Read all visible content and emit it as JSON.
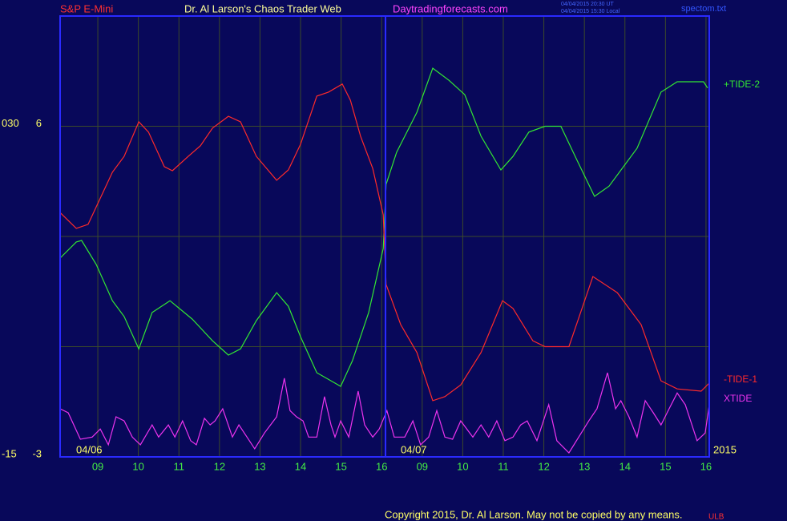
{
  "header": {
    "instrument": "S&P E-Mini",
    "site_title": "Dr. Al Larson's Chaos Trader Web",
    "site_url": "Daytradingforecasts.com",
    "stamp_ut": "04/04/2015 20:30 UT",
    "stamp_local": "04/04/2015 15:30 Local",
    "file": "spectom.txt"
  },
  "footer": {
    "copyright": "Copyright 2015, Dr. Al Larson. May not be copied by any means.",
    "mark": "ULB"
  },
  "chart_data": {
    "type": "line",
    "date_labels": [
      "04/06",
      "04/07"
    ],
    "year_label": "2015",
    "xlim": [
      0.07,
      16.08
    ],
    "xticks": [
      {
        "value": 1,
        "label": "09"
      },
      {
        "value": 2,
        "label": "10"
      },
      {
        "value": 3,
        "label": "11"
      },
      {
        "value": 4,
        "label": "12"
      },
      {
        "value": 5,
        "label": "13"
      },
      {
        "value": 6,
        "label": "14"
      },
      {
        "value": 7,
        "label": "15"
      },
      {
        "value": 8,
        "label": "16"
      },
      {
        "value": 9,
        "label": "09"
      },
      {
        "value": 10,
        "label": "10"
      },
      {
        "value": 11,
        "label": "11"
      },
      {
        "value": 12,
        "label": "12"
      },
      {
        "value": 13,
        "label": "13"
      },
      {
        "value": 14,
        "label": "14"
      },
      {
        "value": 15,
        "label": "15"
      },
      {
        "value": 16,
        "label": "16"
      }
    ],
    "ylim": [
      -3,
      9
    ],
    "yticks": [
      -3,
      6
    ],
    "ygrid": [
      0,
      3,
      6
    ],
    "y2lim": [
      -15,
      45
    ],
    "y2ticks": [
      -15,
      {
        "value": 30,
        "label": "030"
      }
    ],
    "grid": true,
    "series": [
      {
        "name": "+TIDE-2",
        "color": "#33e833",
        "x": [
          0.07,
          0.47,
          0.6,
          0.96,
          1.36,
          1.65,
          2.01,
          2.34,
          2.78,
          3.33,
          3.83,
          4.22,
          4.52,
          4.91,
          5.41,
          5.7,
          6.0,
          6.4,
          6.99,
          7.28,
          7.68,
          8.04,
          8.11,
          8.37,
          8.87,
          9.26,
          9.66,
          10.05,
          10.45,
          10.94,
          11.24,
          11.63,
          12.03,
          12.42,
          12.82,
          13.25,
          13.61,
          14.3,
          14.89,
          15.29,
          15.94,
          16.04
        ],
        "values": [
          2.41,
          2.85,
          2.89,
          2.24,
          1.25,
          0.82,
          -0.06,
          0.93,
          1.25,
          0.75,
          0.16,
          -0.23,
          -0.06,
          0.71,
          1.47,
          1.1,
          0.27,
          -0.71,
          -1.08,
          -0.38,
          0.93,
          2.67,
          4.42,
          5.29,
          6.38,
          7.58,
          7.25,
          6.86,
          5.73,
          4.81,
          5.18,
          5.84,
          6.0,
          6.0,
          5.07,
          4.09,
          4.37,
          5.4,
          6.93,
          7.21,
          7.21,
          7.04
        ]
      },
      {
        "name": "-TIDE-1",
        "color": "#ff2a2a",
        "x": [
          0.07,
          0.47,
          0.76,
          1.36,
          1.65,
          2.01,
          2.25,
          2.64,
          2.84,
          3.23,
          3.53,
          3.83,
          4.22,
          4.52,
          4.91,
          5.41,
          5.7,
          6.0,
          6.4,
          6.69,
          7.03,
          7.23,
          7.48,
          7.78,
          8.04,
          8.11,
          8.47,
          8.87,
          9.26,
          9.56,
          9.95,
          10.45,
          10.98,
          11.24,
          11.73,
          12.03,
          12.62,
          13.21,
          13.81,
          14.4,
          14.89,
          15.29,
          15.88,
          16.08
        ],
        "values": [
          3.65,
          3.22,
          3.33,
          4.75,
          5.18,
          6.12,
          5.84,
          4.9,
          4.79,
          5.18,
          5.47,
          5.95,
          6.27,
          6.12,
          5.18,
          4.53,
          4.81,
          5.51,
          6.82,
          6.93,
          7.15,
          6.71,
          5.73,
          4.85,
          3.59,
          1.69,
          0.6,
          -0.16,
          -1.47,
          -1.36,
          -1.04,
          -0.16,
          1.25,
          1.04,
          0.16,
          0,
          0,
          1.91,
          1.47,
          0.6,
          -0.93,
          -1.15,
          -1.21,
          -0.99
        ]
      },
      {
        "name": "XTIDE",
        "color": "#ee33ee",
        "x": [
          0.07,
          0.27,
          0.57,
          0.86,
          1.06,
          1.26,
          1.45,
          1.65,
          1.85,
          2.05,
          2.34,
          2.5,
          2.74,
          2.9,
          3.09,
          3.29,
          3.43,
          3.63,
          3.77,
          3.89,
          4.08,
          4.32,
          4.48,
          4.68,
          4.87,
          5.11,
          5.41,
          5.6,
          5.74,
          5.9,
          6.06,
          6.2,
          6.4,
          6.59,
          6.75,
          6.85,
          6.99,
          7.19,
          7.42,
          7.58,
          7.78,
          7.94,
          8.13,
          8.31,
          8.57,
          8.77,
          8.96,
          9.16,
          9.36,
          9.56,
          9.75,
          9.95,
          10.25,
          10.45,
          10.64,
          10.84,
          11.04,
          11.24,
          11.43,
          11.59,
          11.83,
          12.12,
          12.32,
          12.62,
          12.86,
          13.11,
          13.31,
          13.57,
          13.77,
          13.9,
          14.1,
          14.3,
          14.5,
          14.7,
          14.89,
          15.09,
          15.29,
          15.49,
          15.78,
          15.98,
          16.08
        ],
        "values": [
          -1.69,
          -1.8,
          -2.52,
          -2.46,
          -2.24,
          -2.67,
          -1.91,
          -2.02,
          -2.46,
          -2.67,
          -2.13,
          -2.46,
          -2.13,
          -2.46,
          -2.02,
          -2.56,
          -2.67,
          -1.95,
          -2.13,
          -2.02,
          -1.69,
          -2.46,
          -2.13,
          -2.46,
          -2.78,
          -2.35,
          -1.91,
          -0.86,
          -1.74,
          -1.91,
          -2.02,
          -2.46,
          -2.46,
          -1.36,
          -2.13,
          -2.46,
          -2.02,
          -2.46,
          -1.21,
          -2.13,
          -2.46,
          -2.24,
          -1.74,
          -2.46,
          -2.46,
          -2.02,
          -2.67,
          -2.46,
          -1.74,
          -2.46,
          -2.52,
          -2.02,
          -2.46,
          -2.13,
          -2.46,
          -2.02,
          -2.56,
          -2.46,
          -2.13,
          -2.02,
          -2.56,
          -1.58,
          -2.56,
          -2.89,
          -2.46,
          -2.02,
          -1.69,
          -0.71,
          -1.69,
          -1.47,
          -1.91,
          -2.46,
          -1.47,
          -1.8,
          -2.13,
          -1.69,
          -1.26,
          -1.58,
          -2.56,
          -2.35,
          -1.58
        ]
      }
    ]
  }
}
